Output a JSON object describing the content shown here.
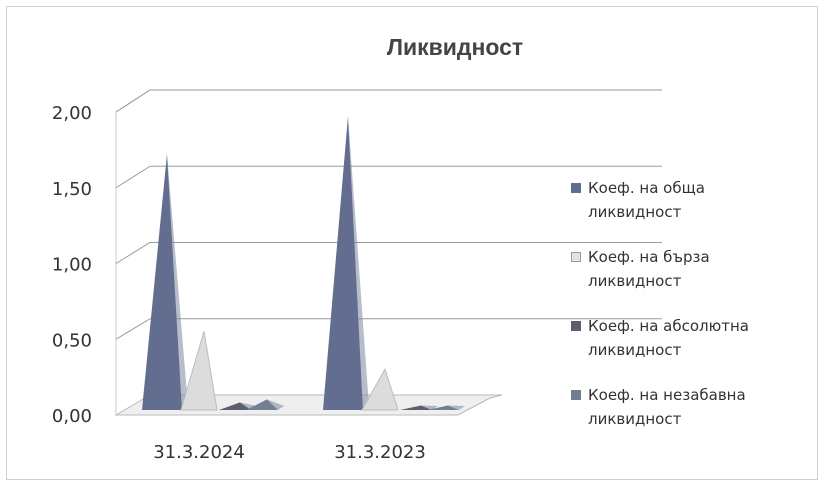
{
  "chart_data": {
    "type": "area",
    "title": "Ликвидност",
    "categories": [
      "31.3.2024",
      "31.3.2023"
    ],
    "yticks": [
      "0,00",
      "0,50",
      "1,00",
      "1,50",
      "2,00"
    ],
    "ylim": [
      0,
      2
    ],
    "grid": true,
    "legend_position": "right",
    "series": [
      {
        "name": "Коеф. на обща ликвидност",
        "values": [
          1.69,
          1.94
        ],
        "color": "#626d8f"
      },
      {
        "name": "Коеф. на бърза ликвидност",
        "values": [
          0.52,
          0.27
        ],
        "color": "#dcdcdc"
      },
      {
        "name": "Коеф. на абсолютна ликвидност",
        "values": [
          0.05,
          0.03
        ],
        "color": "#5b5f6e"
      },
      {
        "name": "Коеф. на незабавна ликвидност",
        "values": [
          0.07,
          0.03
        ],
        "color": "#727f92"
      }
    ]
  }
}
